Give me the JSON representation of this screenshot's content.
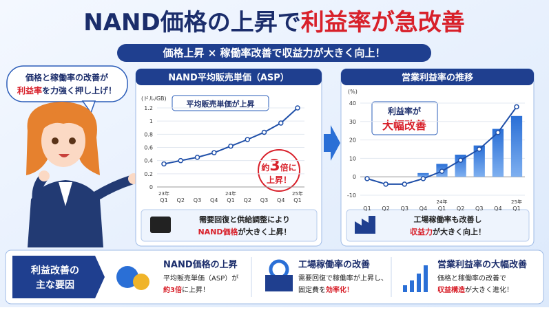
{
  "header": {
    "title_a": "NAND価格の上昇で",
    "title_b": "利益率が急改善",
    "subtitle": "価格上昇 × 稼働率改善で収益力が大きく向上！"
  },
  "bubble": {
    "line1": "価格と稼働率の改善が",
    "line2_red": "利益率",
    "line2_rest": "を力強く押し上げ！"
  },
  "chart_data": [
    {
      "type": "line",
      "title": "NAND平均販売単価（ASP）",
      "y_unit": "(ドル/GB)",
      "categories": [
        "Q1",
        "Q2",
        "Q3",
        "Q4",
        "Q1",
        "Q2",
        "Q3",
        "Q4",
        "Q1"
      ],
      "year_labels": [
        "23年",
        null,
        null,
        null,
        "24年",
        null,
        null,
        null,
        "25年"
      ],
      "series": [
        {
          "color": "#1f4fa8",
          "values": [
            0.35,
            0.4,
            0.45,
            0.52,
            0.62,
            0.72,
            0.83,
            0.97,
            1.2
          ]
        }
      ],
      "ylim": [
        0,
        1.2
      ],
      "yticks": [
        0,
        0.2,
        0.4,
        0.6,
        0.8,
        1.0,
        1.2
      ],
      "grid": true,
      "annotation": "平均販売単価が上昇",
      "callout": {
        "pre": "約",
        "num": "3",
        "post": "倍に",
        "line2": "上昇！"
      },
      "note": {
        "line1": "需要回復と供給調整により",
        "line2_red": "NAND価格",
        "line2_rest": "が大きく上昇！"
      }
    },
    {
      "type": "combo",
      "title": "営業利益率の推移",
      "y_unit": "(%)",
      "categories": [
        "Q1",
        "Q2",
        "Q3",
        "Q4",
        "Q1",
        "Q2",
        "Q3",
        "Q4",
        "Q1"
      ],
      "year_labels": [
        null,
        null,
        null,
        null,
        "24年",
        null,
        null,
        null,
        "25年"
      ],
      "series": [
        {
          "type": "bar",
          "color": "#2a6fd6",
          "values": [
            null,
            null,
            null,
            2,
            7,
            12,
            17,
            26,
            33
          ]
        },
        {
          "type": "line",
          "color": "#1f4fa8",
          "values": [
            -1,
            -4,
            -4,
            -1,
            3,
            9,
            15,
            24,
            38
          ]
        }
      ],
      "ylim": [
        -10,
        40
      ],
      "yticks": [
        -10,
        0,
        10,
        20,
        30,
        40
      ],
      "grid": true,
      "annotation": {
        "line1": "利益率が",
        "line2": "大幅改善"
      },
      "note": {
        "line1": "工場稼働率も改善し",
        "line2_red": "収益力",
        "line2_rest": "が大きく向上！"
      }
    }
  ],
  "factors": {
    "label1": "利益改善の",
    "label2": "主な要因",
    "items": [
      {
        "title": "NAND価格の上昇",
        "line1": "平均販売単価（ASP）が",
        "line2_red": "約3倍",
        "line2_rest": "に上昇！"
      },
      {
        "title": "工場稼働率の改善",
        "line1": "需要回復で稼働率が上昇し、",
        "line2_pre": "固定費を",
        "line2_red": "効率化！"
      },
      {
        "title": "営業利益率の大幅改善",
        "line1": "価格と稼働率の改善で",
        "line2_red": "収益構造",
        "line2_rest": "が大きく進化！"
      }
    ]
  }
}
